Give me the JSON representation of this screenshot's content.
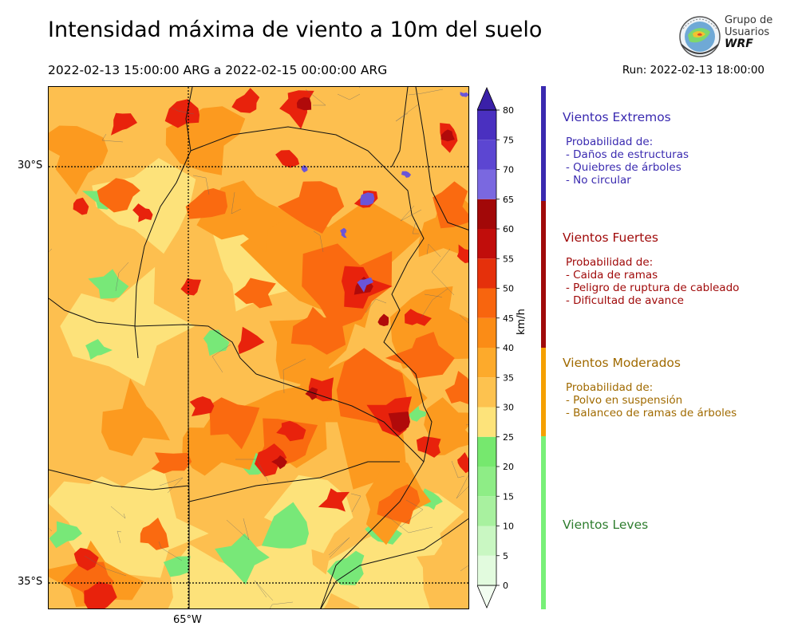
{
  "title": "Intensidad máxima de viento a 10m del suelo",
  "period": "2022-02-13 15:00:00 ARG  a  2022-02-15 00:00:00 ARG",
  "run": "Run: 2022-02-13 18:00:00",
  "logo": {
    "line1": "Grupo de",
    "line2": "Usuarios",
    "line3": "WRF"
  },
  "map": {
    "lat_labels": [
      "30°S",
      "35°S"
    ],
    "lon_labels": [
      "65°W"
    ],
    "colors": {
      "light": "#fde27a",
      "amber": "#fdbf4f",
      "orange": "#fc9a1f",
      "deep": "#fa6a10",
      "red": "#e8220c",
      "darkred": "#b00a0a",
      "green": "#78e878",
      "purple": "#6b55d8"
    }
  },
  "colorbar": {
    "unit": "km/h",
    "ticks": [
      "0",
      "5",
      "10",
      "15",
      "20",
      "25",
      "30",
      "35",
      "40",
      "45",
      "50",
      "55",
      "60",
      "65",
      "70",
      "75",
      "80"
    ],
    "colors": [
      "#f2fdf0",
      "#e2fbde",
      "#c9f7c2",
      "#a8f19f",
      "#8eed86",
      "#76e86e",
      "#fde37a",
      "#fdc24f",
      "#fdaa2b",
      "#fb8c16",
      "#f8650e",
      "#e5300b",
      "#c10d0b",
      "#a20808",
      "#7a68e0",
      "#5c46d2",
      "#4a30c0",
      "#3a20a8"
    ]
  },
  "categories": [
    {
      "title": "Vientos Extremos",
      "color": "#3a2ab0",
      "lines": [
        "Probabilidad de:",
        "- Daños de estructuras",
        "- Quiebres de árboles",
        "- No circular"
      ]
    },
    {
      "title": "Vientos Fuertes",
      "color": "#a00a0a",
      "lines": [
        "Probabilidad de:",
        "- Caida de ramas",
        "- Peligro de ruptura de cableado",
        "- Dificultad de avance"
      ]
    },
    {
      "title": "Vientos Moderados",
      "color": "#a06a00",
      "lines": [
        "Probabilidad de:",
        "- Polvo en suspensión",
        "- Balanceo de ramas de árboles"
      ]
    },
    {
      "title": "Vientos Leves",
      "color": "#2e7d2e",
      "lines": []
    }
  ],
  "legend_bars": [
    {
      "name": "extremos",
      "color": "#3a2ab0"
    },
    {
      "name": "fuertes",
      "color": "#a00a0a"
    },
    {
      "name": "moderados",
      "color": "#f5a000"
    },
    {
      "name": "leves",
      "color": "#78f078"
    }
  ]
}
